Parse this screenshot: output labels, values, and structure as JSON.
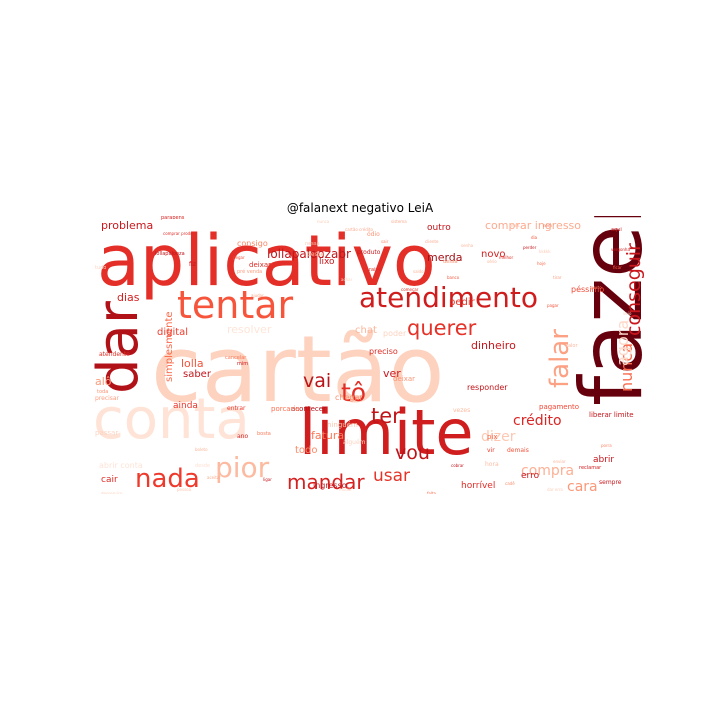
{
  "title": "@falanext negativo LeiA",
  "colors": {
    "background": "#ffffff",
    "title": "#000000"
  },
  "words": [
    {
      "text": "cartão",
      "color": "#fdd2bf",
      "big": true
    },
    {
      "text": "aplicativo",
      "color": "#e32f27",
      "big": true
    },
    {
      "text": "fazer",
      "color": "#67000d",
      "big": true,
      "vertical": true
    },
    {
      "text": "limite",
      "color": "#d01d1e",
      "big": true
    },
    {
      "text": "conta",
      "color": "#fee3d6",
      "big": true
    },
    {
      "text": "dar",
      "color": "#b11218",
      "vertical": true
    },
    {
      "text": "tentar",
      "color": "#f6553c"
    },
    {
      "text": "atendimento",
      "color": "#cf1c1d"
    },
    {
      "text": "nada",
      "color": "#ee3a2c"
    },
    {
      "text": "pior",
      "color": "#fcbba1"
    },
    {
      "text": "falar",
      "color": "#fca183",
      "vertical": true
    },
    {
      "text": "mandar",
      "color": "#d52221"
    },
    {
      "text": "querer",
      "color": "#e53228"
    },
    {
      "text": "conseguir",
      "color": "#c9181d",
      "vertical": true
    },
    {
      "text": "nunca",
      "color": "#f96b4d",
      "vertical": true
    },
    {
      "text": "agora",
      "color": "#fed9c9",
      "vertical": true
    },
    {
      "text": "vai",
      "color": "#b91419"
    },
    {
      "text": "tô",
      "color": "#e12d26"
    },
    {
      "text": "ter",
      "color": "#c0161b"
    },
    {
      "text": "vou",
      "color": "#bc141a"
    },
    {
      "text": "usar",
      "color": "#e63328"
    },
    {
      "text": "crédito",
      "color": "#d92523"
    },
    {
      "text": "dizer",
      "color": "#fdc8b3"
    },
    {
      "text": "cara",
      "color": "#fc9879"
    },
    {
      "text": "compra",
      "color": "#fcb095"
    },
    {
      "text": "problema",
      "color": "#cb181d"
    },
    {
      "text": "comprar ingresso",
      "color": "#fcab8f"
    },
    {
      "text": "lollapaloozabr",
      "color": "#c2161b"
    },
    {
      "text": "dinheiro",
      "color": "#c7171c"
    },
    {
      "text": "dias",
      "color": "#d32020"
    },
    {
      "text": "fatura",
      "color": "#fb7858"
    },
    {
      "text": "ver",
      "color": "#cc191e"
    },
    {
      "text": "todo",
      "color": "#fc8b6b"
    },
    {
      "text": "lolla",
      "color": "#f5523a"
    },
    {
      "text": "saber",
      "color": "#c3161b"
    },
    {
      "text": "ainda",
      "color": "#e83429"
    },
    {
      "text": "alô",
      "color": "#fc9b7c"
    },
    {
      "text": "cair",
      "color": "#e02c26"
    },
    {
      "text": "simplesmente",
      "color": "#fa6849",
      "vertical": true
    },
    {
      "text": "digital",
      "color": "#f03d2d"
    },
    {
      "text": "chat",
      "color": "#fcb69b"
    },
    {
      "text": "resolver",
      "color": "#fee5d8"
    },
    {
      "text": "pedir",
      "color": "#e63328"
    },
    {
      "text": "merda",
      "color": "#a50f15"
    },
    {
      "text": "novo",
      "color": "#d42121"
    },
    {
      "text": "outro",
      "color": "#c4161c"
    },
    {
      "text": "lixo",
      "color": "#c9181d"
    },
    {
      "text": "péssimo",
      "color": "#f34a36"
    },
    {
      "text": "horrível",
      "color": "#e02c26"
    },
    {
      "text": "responder",
      "color": "#c0161b"
    },
    {
      "text": "preciso",
      "color": "#e12d26"
    },
    {
      "text": "pagamento",
      "color": "#f24734"
    },
    {
      "text": "liberar limite",
      "color": "#c3161b"
    },
    {
      "text": "abrir",
      "color": "#c4161c"
    },
    {
      "text": "erro",
      "color": "#c9181d"
    },
    {
      "text": "consigo",
      "color": "#fc8767"
    },
    {
      "text": "ingresso",
      "color": "#c3161b"
    },
    {
      "text": "abrir conta",
      "color": "#fee3d6"
    },
    {
      "text": "acontecer",
      "color": "#b11218"
    },
    {
      "text": "funcionar",
      "color": "#c3161b"
    },
    {
      "text": "passar",
      "color": "#fdd4c2"
    },
    {
      "text": "produto",
      "color": "#c9181d"
    },
    {
      "text": "chegar",
      "color": "#fc8e6e"
    },
    {
      "text": "ninguém",
      "color": "#fdc5ae"
    },
    {
      "text": "porcaria",
      "color": "#fb7151"
    },
    {
      "text": "demais",
      "color": "#f5533b"
    },
    {
      "text": "vezes",
      "color": "#fcbba1"
    },
    {
      "text": "atendente",
      "color": "#e32f27"
    },
    {
      "text": "entrar",
      "color": "#ed392b"
    },
    {
      "text": "deixar",
      "color": "#de2a25"
    },
    {
      "text": "deixar",
      "color": "#fc9576"
    },
    {
      "text": "poder",
      "color": "#fdd4c2"
    },
    {
      "text": "precisar",
      "color": "#fc9e80"
    },
    {
      "text": "sempre",
      "color": "#c9181d"
    },
    {
      "text": "pix",
      "color": "#fa6849"
    },
    {
      "text": "vir",
      "color": "#ea362a"
    },
    {
      "text": "hora",
      "color": "#fcbea5"
    },
    {
      "text": "alguém",
      "color": "#fdd4c2"
    },
    {
      "text": "nessa",
      "color": "#fdcab5"
    },
    {
      "text": "ódio",
      "color": "#fc9474"
    },
    {
      "text": "raiva",
      "color": "#de2a25"
    },
    {
      "text": "desse",
      "color": "#fcb69b"
    },
    {
      "text": "dessa",
      "color": "#fc9272"
    },
    {
      "text": "fiz",
      "color": "#c4161c"
    },
    {
      "text": "aqui",
      "color": "#c9181d"
    },
    {
      "text": "toda",
      "color": "#fc9474"
    },
    {
      "text": "ano",
      "color": "#d42121"
    },
    {
      "text": "bosta",
      "color": "#fb7c5c"
    },
    {
      "text": "mim",
      "color": "#c9181d"
    },
    {
      "text": "valor",
      "color": "#fcb99f"
    },
    {
      "text": "pré venda",
      "color": "#fc9e80"
    },
    {
      "text": "cancelar",
      "color": "#fb7757"
    },
    {
      "text": "tudo",
      "color": "#fdd4c2"
    },
    {
      "text": "desde",
      "color": "#fee1d4"
    },
    {
      "text": "reclamar",
      "color": "#d32020"
    },
    {
      "text": "sério",
      "color": "#fcb69b"
    },
    {
      "text": "dia",
      "color": "#f5533b"
    },
    {
      "text": "nunca",
      "color": "#fdcebb"
    },
    {
      "text": "nem",
      "color": "#fb7050"
    },
    {
      "text": "sair",
      "color": "#fc8a6a"
    },
    {
      "text": "sistema",
      "color": "#fcaa8d"
    },
    {
      "text": "cartão crédito",
      "color": "#fcab8f"
    },
    {
      "text": "pessoa",
      "color": "#fdc5ae"
    },
    {
      "text": "pegar",
      "color": "#f44f39"
    },
    {
      "text": "ajudar",
      "color": "#fca486"
    },
    {
      "text": "mês",
      "color": "#fcb69b"
    },
    {
      "text": "cadê",
      "color": "#fc8d6d"
    },
    {
      "text": "porra",
      "color": "#fc8565"
    },
    {
      "text": "tirar",
      "color": "#fc9d7f"
    },
    {
      "text": "parabéns",
      "color": "#d52221"
    },
    {
      "text": "comprar produto",
      "color": "#e12d26"
    },
    {
      "text": "desserviço",
      "color": "#fdd0bc"
    },
    {
      "text": "kkkkk",
      "color": "#fdcab5"
    },
    {
      "text": "uber_brasil",
      "color": "#c4161c"
    },
    {
      "text": "achar",
      "color": "#fdd4c2"
    },
    {
      "text": "começar",
      "color": "#e12d26"
    },
    {
      "text": "dar erro",
      "color": "#fdcebb"
    },
    {
      "text": "banco",
      "color": "#f6583e"
    },
    {
      "text": "saldo",
      "color": "#fcb69b"
    },
    {
      "text": "tempo",
      "color": "#fdd4c2"
    },
    {
      "text": "perder",
      "color": "#c4161c"
    },
    {
      "text": "ficar",
      "color": "#fb6a4a"
    },
    {
      "text": "lollapalooza",
      "color": "#c0161b"
    },
    {
      "text": "vergonha",
      "color": "#d32020"
    },
    {
      "text": "cliente",
      "color": "#fcab8f"
    },
    {
      "text": "senha",
      "color": "#fcb69b"
    },
    {
      "text": "pagar",
      "color": "#f5533b"
    },
    {
      "text": "perto",
      "color": "#fb7c5c"
    },
    {
      "text": "ligar",
      "color": "#c4161c"
    },
    {
      "text": "mudar",
      "color": "#fdd4c2"
    },
    {
      "text": "falta",
      "color": "#fb6a4a"
    },
    {
      "text": "enviar",
      "color": "#fcb69b"
    },
    {
      "text": "melhor",
      "color": "#e12d26"
    },
    {
      "text": "aceitar",
      "color": "#fcab8f"
    },
    {
      "text": "veio",
      "color": "#fdd4c2"
    },
    {
      "text": "hoje",
      "color": "#fb6a4a"
    },
    {
      "text": "cobrar",
      "color": "#c4161c"
    },
    {
      "text": "boleto",
      "color": "#fcb69b"
    }
  ]
}
